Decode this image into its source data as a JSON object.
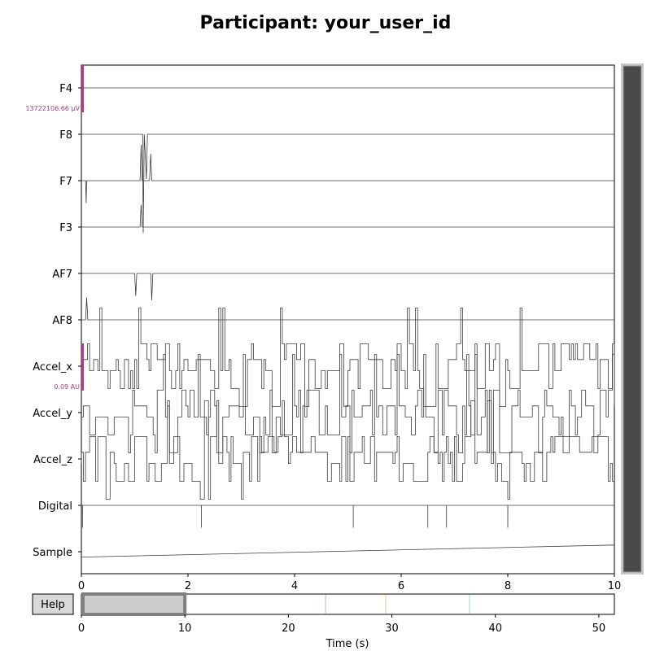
{
  "title": "Participant: your_user_id",
  "help_label": "Help",
  "xlabel": "Time (s)",
  "chart_data": {
    "type": "line",
    "channels": [
      "F4",
      "F8",
      "F7",
      "F3",
      "AF7",
      "AF8",
      "Accel_x",
      "Accel_y",
      "Accel_z",
      "Digital",
      "Sample"
    ],
    "main_x_ticks": [
      "0",
      "2",
      "4",
      "6",
      "8",
      "10"
    ],
    "xlim": [
      0,
      10
    ],
    "scalebars": [
      {
        "channel": "F4",
        "label": "13722106.66 µV"
      },
      {
        "channel": "Accel_x",
        "label": "0.09 AU"
      }
    ],
    "overview": {
      "ticks": [
        "0",
        "10",
        "20",
        "30",
        "40",
        "50"
      ],
      "xlim": [
        0,
        51.5
      ],
      "view_window": [
        0,
        10
      ],
      "event_markers": [
        {
          "t": 23.6,
          "color": "#9ec3e4"
        },
        {
          "t": 29.4,
          "color": "#f1c497"
        },
        {
          "t": 37.5,
          "color": "#a9dcb0"
        }
      ]
    },
    "traces": {
      "F4": [
        [
          0,
          0
        ]
      ],
      "F8": [
        [
          0.0,
          0
        ],
        [
          1.15,
          0
        ],
        [
          1.16,
          -2.2
        ],
        [
          1.18,
          0
        ],
        [
          1.22,
          -1.0
        ],
        [
          1.24,
          0
        ],
        [
          1.3,
          0
        ]
      ],
      "F7": [
        [
          0.0,
          0
        ],
        [
          0.08,
          0
        ],
        [
          0.09,
          -0.5
        ],
        [
          0.1,
          0
        ],
        [
          1.1,
          0
        ],
        [
          1.12,
          0.8
        ],
        [
          1.14,
          0
        ],
        [
          1.28,
          0
        ],
        [
          1.3,
          0.6
        ],
        [
          1.32,
          0
        ]
      ],
      "F3": [
        [
          0.0,
          0
        ],
        [
          1.1,
          0
        ],
        [
          1.12,
          0.5
        ],
        [
          1.14,
          0
        ]
      ],
      "AF7": [
        [
          0.0,
          0
        ],
        [
          1.0,
          0
        ],
        [
          1.02,
          -0.5
        ],
        [
          1.04,
          0
        ],
        [
          1.3,
          0
        ],
        [
          1.32,
          -0.6
        ],
        [
          1.34,
          0
        ]
      ],
      "AF8": [
        [
          0.0,
          0
        ],
        [
          0.08,
          0
        ],
        [
          0.1,
          0.5
        ],
        [
          0.12,
          0
        ]
      ],
      "Accel_x": {
        "levels": [
          -0.5,
          -0.1,
          0.15,
          0.5
        ],
        "seed": 11
      },
      "Accel_y": {
        "levels": [
          -0.5,
          -0.1,
          0.15,
          0.5
        ],
        "seed": 23
      },
      "Accel_z": {
        "levels": [
          -0.5,
          -0.1,
          0.15,
          0.5
        ],
        "seed": 37
      },
      "Digital": {
        "spikes": [
          0.02,
          2.25,
          5.1,
          6.5,
          6.85,
          8.0
        ]
      },
      "Sample": {
        "start": 0.12,
        "end": -0.15
      }
    }
  }
}
